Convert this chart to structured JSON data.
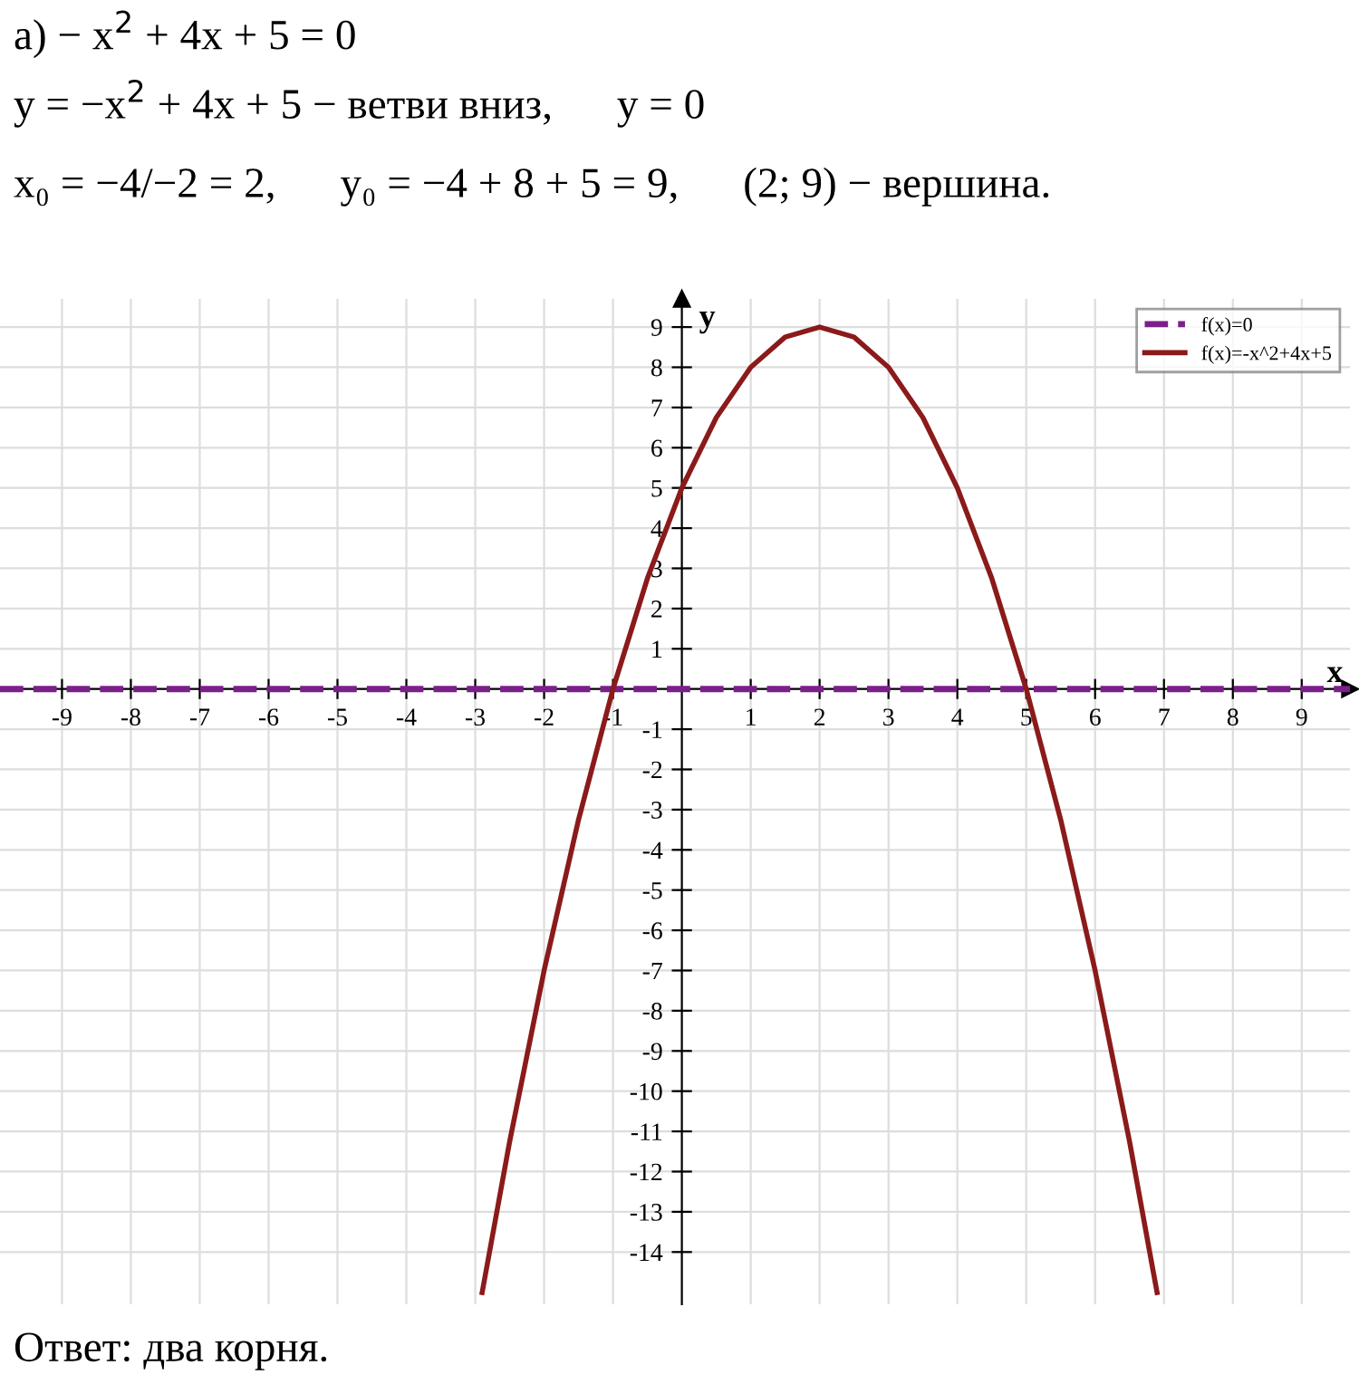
{
  "chart_data": {
    "type": "line",
    "xlabel": "x",
    "ylabel": "y",
    "annotations": [
      "а) − x$^{2}$ + 4x + 5 = 0",
      "y = −x$^{2}$ + 4x + 5 − ветви вниз,      y = 0",
      "x₀ = −4/−2 = 2,      y₀ = −4 + 8 + 5 = 9,      (2; 9) − вершина.",
      "Ответ: два корня."
    ],
    "series": [
      {
        "name": "f(x)=0",
        "color": "#7b1f8a",
        "line_style": "dashed",
        "x": [
          -9.9,
          9.7
        ],
        "values": [
          0,
          0
        ]
      },
      {
        "name": "f(x)=-x^2+4x+5",
        "color": "#8b1a1a",
        "line_style": "solid",
        "x": [
          -2.9,
          -2.5,
          -2,
          -1.5,
          -1,
          -0.5,
          0,
          0.5,
          1,
          1.5,
          2,
          2.5,
          3,
          3.5,
          4,
          4.5,
          5,
          5.5,
          6,
          6.5,
          6.9
        ],
        "values": [
          -15.01,
          -11.25,
          -7,
          -3.25,
          0,
          2.75,
          5,
          6.75,
          8,
          8.75,
          9,
          8.75,
          8,
          6.75,
          5,
          2.75,
          0,
          -3.25,
          -7,
          -11.25,
          -15.01
        ]
      }
    ],
    "xlim": [
      -9.9,
      9.7
    ],
    "ylim": [
      -15.3,
      9.7
    ],
    "xticks": [
      -9,
      -8,
      -7,
      -6,
      -5,
      -4,
      -3,
      -2,
      -1,
      1,
      2,
      3,
      4,
      5,
      6,
      7,
      8,
      9
    ],
    "yticks": [
      -14,
      -13,
      -12,
      -11,
      -10,
      -9,
      -8,
      -7,
      -6,
      -5,
      -4,
      -3,
      -2,
      -1,
      1,
      2,
      3,
      4,
      5,
      6,
      7,
      8,
      9
    ],
    "grid": true,
    "legend": "top right",
    "marker": "none"
  }
}
